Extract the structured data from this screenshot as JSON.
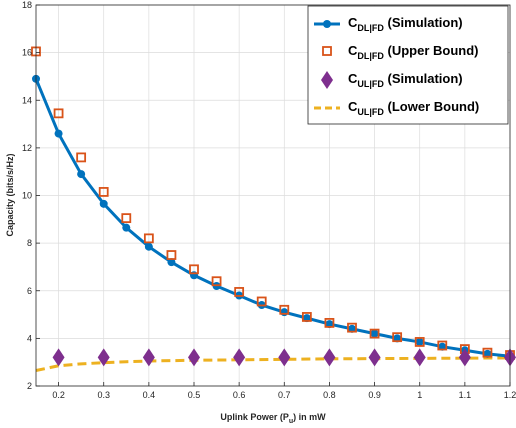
{
  "chart_data": {
    "type": "line",
    "xlabel": "Uplink Power (P",
    "xlabel_sub": "u",
    "xlabel_suffix": ") in mW",
    "ylabel": "Capacity  (bits/s/Hz)",
    "xlim": [
      0.15,
      1.2
    ],
    "ylim": [
      2,
      18
    ],
    "xticks": [
      "0.2",
      "0.3",
      "0.4",
      "0.5",
      "0.6",
      "0.7",
      "0.8",
      "0.9",
      "1",
      "1.1",
      "1.2"
    ],
    "yticks": [
      "2",
      "4",
      "6",
      "8",
      "10",
      "12",
      "14",
      "16",
      "18"
    ],
    "grid": true,
    "legend_position": "top-right",
    "series": [
      {
        "name": "C",
        "name_sub": "DL|FD",
        "name_suffix": " (Simulation)",
        "style": "solid line with filled circle markers",
        "color": "#0072BD",
        "x": [
          0.15,
          0.2,
          0.25,
          0.3,
          0.35,
          0.4,
          0.45,
          0.5,
          0.55,
          0.6,
          0.65,
          0.7,
          0.75,
          0.8,
          0.85,
          0.9,
          0.95,
          1.0,
          1.05,
          1.1,
          1.15,
          1.2
        ],
        "values": [
          14.9,
          12.6,
          10.9,
          9.65,
          8.65,
          7.85,
          7.2,
          6.65,
          6.2,
          5.8,
          5.4,
          5.1,
          4.85,
          4.6,
          4.4,
          4.2,
          4.0,
          3.85,
          3.65,
          3.5,
          3.35,
          3.25
        ]
      },
      {
        "name": "C",
        "name_sub": "DL|FD",
        "name_suffix": " (Upper Bound)",
        "style": "open square markers",
        "color": "#D95319",
        "x": [
          0.15,
          0.2,
          0.25,
          0.3,
          0.35,
          0.4,
          0.45,
          0.5,
          0.55,
          0.6,
          0.65,
          0.7,
          0.75,
          0.8,
          0.85,
          0.9,
          0.95,
          1.0,
          1.05,
          1.1,
          1.15,
          1.2
        ],
        "values": [
          16.05,
          13.45,
          11.6,
          10.15,
          9.05,
          8.2,
          7.5,
          6.9,
          6.4,
          5.95,
          5.55,
          5.2,
          4.9,
          4.65,
          4.45,
          4.2,
          4.05,
          3.85,
          3.7,
          3.55,
          3.4,
          3.3
        ]
      },
      {
        "name": "C",
        "name_sub": "UL|FD",
        "name_suffix": " (Simulation)",
        "style": "filled diamond markers",
        "color": "#7E2F8E",
        "x": [
          0.2,
          0.3,
          0.4,
          0.5,
          0.6,
          0.7,
          0.8,
          0.9,
          1.0,
          1.1,
          1.2
        ],
        "values": [
          3.2,
          3.2,
          3.2,
          3.2,
          3.2,
          3.2,
          3.2,
          3.2,
          3.2,
          3.2,
          3.2
        ]
      },
      {
        "name": "C",
        "name_sub": "UL|FD",
        "name_suffix": " (Lower Bound)",
        "style": "dashed line",
        "color": "#EDB120",
        "x": [
          0.15,
          0.2,
          0.25,
          0.3,
          0.35,
          0.4,
          0.5,
          0.6,
          0.7,
          0.8,
          0.9,
          1.0,
          1.1,
          1.2
        ],
        "values": [
          2.65,
          2.85,
          2.93,
          2.98,
          3.02,
          3.05,
          3.08,
          3.1,
          3.12,
          3.14,
          3.15,
          3.16,
          3.17,
          3.18
        ]
      }
    ]
  }
}
